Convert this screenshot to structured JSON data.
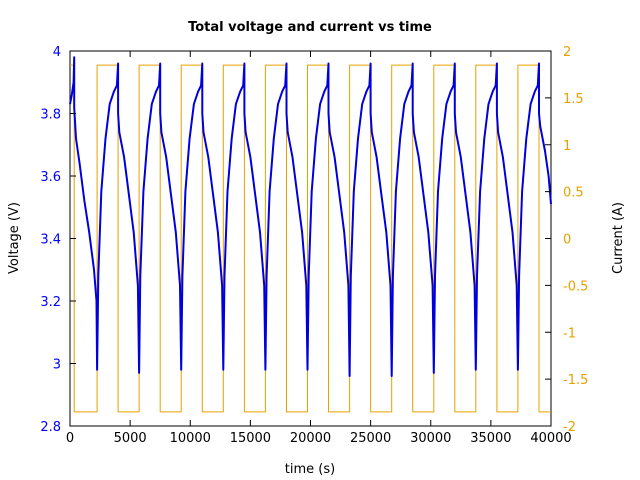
{
  "chart_data": {
    "type": "line",
    "title": "Total voltage and current vs time",
    "xlabel": "time (s)",
    "ylabel_left": "Voltage (V)",
    "ylabel_right": "Current (A)",
    "xlim": [
      0,
      40000
    ],
    "ylim_left": [
      2.8,
      4
    ],
    "ylim_right": [
      -2,
      2
    ],
    "x_ticks": [
      "0",
      "5000",
      "10000",
      "15000",
      "20000",
      "25000",
      "30000",
      "35000",
      "40000"
    ],
    "y_left_ticks": [
      "2.8",
      "3",
      "3.2",
      "3.4",
      "3.6",
      "3.8",
      "4"
    ],
    "y_right_ticks": [
      "-2",
      "-1.5",
      "-1",
      "-0.5",
      "0",
      "0.5",
      "1",
      "1.5",
      "2"
    ],
    "grid": false,
    "colors": {
      "voltage": "#0000dd",
      "current": "#e8a000",
      "left_axis": "#0000ff",
      "right_axis": "#e8a000"
    },
    "series": [
      {
        "axis": "right",
        "kind": "step",
        "x": [
          0,
          350,
          350,
          2250,
          2250,
          4000,
          4000,
          5750,
          5750,
          7500,
          7500,
          9250,
          9250,
          11000,
          11000,
          12750,
          12750,
          14500,
          14500,
          16250,
          16250,
          18000,
          18000,
          19750,
          19750,
          21500,
          21500,
          23250,
          23250,
          25000,
          25000,
          26750,
          26750,
          28500,
          28500,
          30250,
          30250,
          32000,
          32000,
          33750,
          33750,
          35500,
          35500,
          37250,
          37250,
          39000,
          39000,
          40000
        ],
        "y": [
          1.85,
          1.85,
          -1.85,
          -1.85,
          1.85,
          1.85,
          -1.85,
          -1.85,
          1.85,
          1.85,
          -1.85,
          -1.85,
          1.85,
          1.85,
          -1.85,
          -1.85,
          1.85,
          1.85,
          -1.85,
          -1.85,
          1.85,
          1.85,
          -1.85,
          -1.85,
          1.85,
          1.85,
          -1.85,
          -1.85,
          1.85,
          1.85,
          -1.85,
          -1.85,
          1.85,
          1.85,
          -1.85,
          -1.85,
          1.85,
          1.85,
          -1.85,
          -1.85,
          1.85,
          1.85,
          -1.85,
          -1.85,
          1.85,
          1.85,
          -1.85,
          -1.85
        ]
      },
      {
        "axis": "left",
        "kind": "line",
        "x": [
          0,
          150,
          300,
          350,
          350,
          500,
          800,
          1200,
          1600,
          2000,
          2200,
          2250,
          2250,
          2350,
          2600,
          2950,
          3300,
          3650,
          3900,
          4000,
          4000,
          4100,
          4500,
          4900,
          5300,
          5650,
          5750,
          5750,
          5850,
          6100,
          6450,
          6800,
          7150,
          7400,
          7500,
          7500,
          7600,
          8000,
          8400,
          8800,
          9150,
          9250,
          9250,
          9350,
          9600,
          9950,
          10300,
          10650,
          10900,
          11000,
          11000,
          11100,
          11500,
          11900,
          12300,
          12650,
          12750,
          12750,
          12850,
          13100,
          13450,
          13800,
          14150,
          14400,
          14500,
          14500,
          14600,
          15000,
          15400,
          15800,
          16150,
          16250,
          16250,
          16350,
          16600,
          16950,
          17300,
          17650,
          17900,
          18000,
          18000,
          18100,
          18500,
          18900,
          19300,
          19650,
          19750,
          19750,
          19850,
          20100,
          20450,
          20800,
          21150,
          21400,
          21500,
          21500,
          21600,
          22000,
          22400,
          22800,
          23150,
          23250,
          23250,
          23350,
          23600,
          23950,
          24300,
          24650,
          24900,
          25000,
          25000,
          25100,
          25500,
          25900,
          26300,
          26650,
          26750,
          26750,
          26850,
          27100,
          27450,
          27800,
          28150,
          28400,
          28500,
          28500,
          28600,
          29000,
          29400,
          29800,
          30150,
          30250,
          30250,
          30350,
          30600,
          30950,
          31300,
          31650,
          31900,
          32000,
          32000,
          32100,
          32500,
          32900,
          33300,
          33650,
          33750,
          33750,
          33850,
          34100,
          34450,
          34800,
          35150,
          35400,
          35500,
          35500,
          35600,
          36000,
          36400,
          36800,
          37150,
          37250,
          37250,
          37350,
          37600,
          37950,
          38300,
          38650,
          38900,
          39000,
          39000,
          39100,
          39500,
          39800,
          40000
        ],
        "y": [
          3.83,
          3.86,
          3.9,
          3.98,
          3.82,
          3.72,
          3.64,
          3.52,
          3.42,
          3.3,
          3.2,
          2.98,
          2.98,
          3.28,
          3.55,
          3.72,
          3.83,
          3.87,
          3.89,
          3.96,
          3.8,
          3.74,
          3.66,
          3.54,
          3.42,
          3.25,
          2.97,
          2.97,
          3.28,
          3.55,
          3.72,
          3.83,
          3.87,
          3.89,
          3.96,
          3.8,
          3.74,
          3.66,
          3.54,
          3.42,
          3.25,
          2.98,
          2.98,
          3.28,
          3.55,
          3.72,
          3.83,
          3.87,
          3.89,
          3.96,
          3.8,
          3.74,
          3.66,
          3.54,
          3.42,
          3.25,
          2.98,
          2.98,
          3.28,
          3.55,
          3.72,
          3.83,
          3.87,
          3.89,
          3.96,
          3.8,
          3.74,
          3.66,
          3.54,
          3.42,
          3.25,
          2.98,
          2.98,
          3.28,
          3.55,
          3.72,
          3.83,
          3.87,
          3.89,
          3.96,
          3.8,
          3.74,
          3.66,
          3.54,
          3.42,
          3.25,
          2.98,
          2.98,
          3.28,
          3.55,
          3.72,
          3.83,
          3.87,
          3.89,
          3.96,
          3.8,
          3.74,
          3.66,
          3.54,
          3.42,
          3.25,
          2.96,
          2.96,
          3.28,
          3.55,
          3.72,
          3.83,
          3.87,
          3.89,
          3.96,
          3.8,
          3.74,
          3.66,
          3.54,
          3.42,
          3.25,
          2.96,
          2.96,
          3.28,
          3.55,
          3.72,
          3.83,
          3.87,
          3.89,
          3.96,
          3.8,
          3.74,
          3.66,
          3.54,
          3.42,
          3.25,
          2.97,
          2.97,
          3.28,
          3.55,
          3.72,
          3.83,
          3.87,
          3.89,
          3.96,
          3.8,
          3.74,
          3.66,
          3.54,
          3.42,
          3.25,
          2.98,
          2.98,
          3.28,
          3.55,
          3.72,
          3.83,
          3.87,
          3.89,
          3.96,
          3.8,
          3.74,
          3.66,
          3.54,
          3.42,
          3.25,
          2.98,
          2.98,
          3.28,
          3.55,
          3.72,
          3.83,
          3.87,
          3.89,
          3.96,
          3.8,
          3.76,
          3.68,
          3.6,
          3.51
        ]
      }
    ]
  }
}
